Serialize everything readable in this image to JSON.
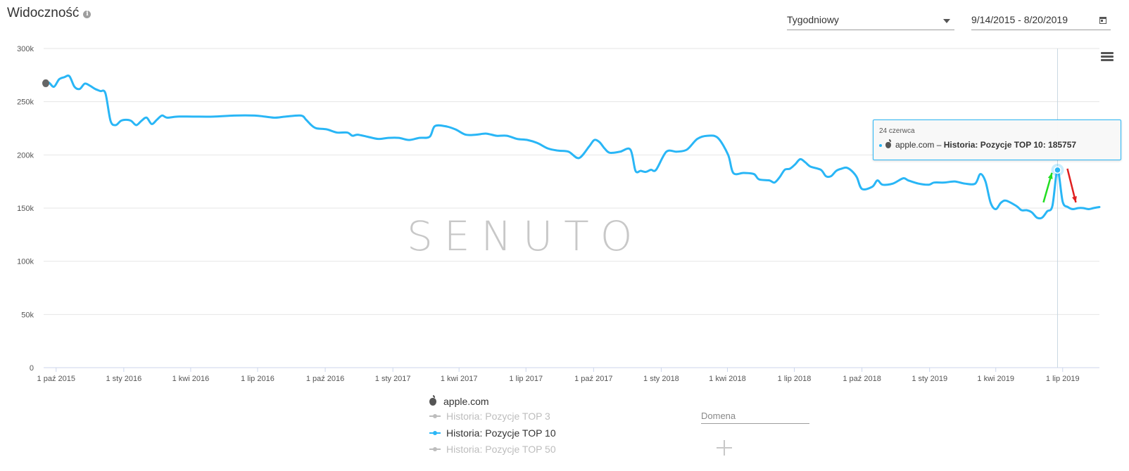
{
  "header": {
    "title": "Widoczność",
    "granularity": "Tygodniowy",
    "date_range": "9/14/2015 - 8/20/2019"
  },
  "colors": {
    "series": "#29b6f6",
    "grid": "#e6e6e6",
    "inactive": "#bdbdbd",
    "arrow_up": "#22dd22",
    "arrow_down": "#e02020"
  },
  "watermark": "SENUTO",
  "tooltip": {
    "date": "24 czerwca",
    "domain": "apple.com",
    "series": "Historia: Pozycje TOP 10",
    "value": "185757"
  },
  "legend": {
    "domain": "apple.com",
    "series": [
      {
        "label": "Historia: Pozycje TOP 3",
        "active": false
      },
      {
        "label": "Historia: Pozycje TOP 10",
        "active": true
      },
      {
        "label": "Historia: Pozycje TOP 50",
        "active": false
      }
    ]
  },
  "domain_input": {
    "placeholder": "Domena",
    "value": ""
  },
  "chart_data": {
    "type": "line",
    "title": "",
    "xlabel": "",
    "ylabel": "",
    "ylim": [
      0,
      300000
    ],
    "xlim": [
      "2015-09-14",
      "2019-08-20"
    ],
    "y_ticks": [
      0,
      50000,
      100000,
      150000,
      200000,
      250000,
      300000
    ],
    "y_tick_labels": [
      "0",
      "50k",
      "100k",
      "150k",
      "200k",
      "250k",
      "300k"
    ],
    "x_ticks": [
      "2015-10-01",
      "2016-01-01",
      "2016-04-01",
      "2016-07-01",
      "2016-10-01",
      "2017-01-01",
      "2017-04-01",
      "2017-07-01",
      "2017-10-01",
      "2018-01-01",
      "2018-04-01",
      "2018-07-01",
      "2018-10-01",
      "2019-01-01",
      "2019-04-01",
      "2019-07-01"
    ],
    "x_tick_labels": [
      "1 paź 2015",
      "1 sty 2016",
      "1 kwi 2016",
      "1 lip 2016",
      "1 paź 2016",
      "1 sty 2017",
      "1 kwi 2017",
      "1 lip 2017",
      "1 paź 2017",
      "1 sty 2018",
      "1 kwi 2018",
      "1 lip 2018",
      "1 paź 2018",
      "1 sty 2019",
      "1 kwi 2019",
      "1 lip 2019"
    ],
    "grid": true,
    "highlight": {
      "date": "2019-06-24",
      "value": 185757
    },
    "series": [
      {
        "name": "Historia: Pozycje TOP 10",
        "points": [
          [
            "2015-09-14",
            268000
          ],
          [
            "2015-09-21",
            268000
          ],
          [
            "2015-09-28",
            264000
          ],
          [
            "2015-10-05",
            271000
          ],
          [
            "2015-10-12",
            273000
          ],
          [
            "2015-10-19",
            274000
          ],
          [
            "2015-10-26",
            264000
          ],
          [
            "2015-11-02",
            262000
          ],
          [
            "2015-11-09",
            267000
          ],
          [
            "2015-11-16",
            265000
          ],
          [
            "2015-11-23",
            262000
          ],
          [
            "2015-11-30",
            260000
          ],
          [
            "2015-12-07",
            258000
          ],
          [
            "2015-12-14",
            232000
          ],
          [
            "2015-12-21",
            228000
          ],
          [
            "2015-12-28",
            232000
          ],
          [
            "2016-01-04",
            233000
          ],
          [
            "2016-01-11",
            232000
          ],
          [
            "2016-01-18",
            228000
          ],
          [
            "2016-01-25",
            232000
          ],
          [
            "2016-02-01",
            235000
          ],
          [
            "2016-02-08",
            229000
          ],
          [
            "2016-02-15",
            233000
          ],
          [
            "2016-02-22",
            237000
          ],
          [
            "2016-02-29",
            235000
          ],
          [
            "2016-03-14",
            236000
          ],
          [
            "2016-04-04",
            236000
          ],
          [
            "2016-05-02",
            236000
          ],
          [
            "2016-05-30",
            237000
          ],
          [
            "2016-06-27",
            237000
          ],
          [
            "2016-07-11",
            236000
          ],
          [
            "2016-07-25",
            235000
          ],
          [
            "2016-08-08",
            236000
          ],
          [
            "2016-08-29",
            237000
          ],
          [
            "2016-09-05",
            233000
          ],
          [
            "2016-09-12",
            228000
          ],
          [
            "2016-09-19",
            225000
          ],
          [
            "2016-10-03",
            224000
          ],
          [
            "2016-10-17",
            221000
          ],
          [
            "2016-10-31",
            221000
          ],
          [
            "2016-11-07",
            218000
          ],
          [
            "2016-11-14",
            219000
          ],
          [
            "2016-11-28",
            217000
          ],
          [
            "2016-12-12",
            215000
          ],
          [
            "2016-12-26",
            216000
          ],
          [
            "2017-01-09",
            216000
          ],
          [
            "2017-01-23",
            214000
          ],
          [
            "2017-02-06",
            216000
          ],
          [
            "2017-02-20",
            217000
          ],
          [
            "2017-02-27",
            227000
          ],
          [
            "2017-03-13",
            227000
          ],
          [
            "2017-03-27",
            224000
          ],
          [
            "2017-04-10",
            219000
          ],
          [
            "2017-04-24",
            219000
          ],
          [
            "2017-05-08",
            220000
          ],
          [
            "2017-05-22",
            218000
          ],
          [
            "2017-06-05",
            218000
          ],
          [
            "2017-06-19",
            215000
          ],
          [
            "2017-07-03",
            214000
          ],
          [
            "2017-07-17",
            211000
          ],
          [
            "2017-07-31",
            206000
          ],
          [
            "2017-08-14",
            204000
          ],
          [
            "2017-08-28",
            203000
          ],
          [
            "2017-09-11",
            197000
          ],
          [
            "2017-09-25",
            208000
          ],
          [
            "2017-10-02",
            214000
          ],
          [
            "2017-10-09",
            212000
          ],
          [
            "2017-10-16",
            206000
          ],
          [
            "2017-10-23",
            202000
          ],
          [
            "2017-11-06",
            203000
          ],
          [
            "2017-11-20",
            205000
          ],
          [
            "2017-11-27",
            185000
          ],
          [
            "2017-12-04",
            185000
          ],
          [
            "2017-12-11",
            184000
          ],
          [
            "2017-12-18",
            186000
          ],
          [
            "2017-12-25",
            186000
          ],
          [
            "2018-01-08",
            203000
          ],
          [
            "2018-01-22",
            203000
          ],
          [
            "2018-02-05",
            205000
          ],
          [
            "2018-02-19",
            215000
          ],
          [
            "2018-03-05",
            218000
          ],
          [
            "2018-03-19",
            216000
          ],
          [
            "2018-04-02",
            200000
          ],
          [
            "2018-04-09",
            183000
          ],
          [
            "2018-04-23",
            183000
          ],
          [
            "2018-05-07",
            182000
          ],
          [
            "2018-05-14",
            177000
          ],
          [
            "2018-05-28",
            176000
          ],
          [
            "2018-06-04",
            174000
          ],
          [
            "2018-06-11",
            179000
          ],
          [
            "2018-06-18",
            186000
          ],
          [
            "2018-06-25",
            187000
          ],
          [
            "2018-07-02",
            191000
          ],
          [
            "2018-07-09",
            196000
          ],
          [
            "2018-07-16",
            193000
          ],
          [
            "2018-07-23",
            189000
          ],
          [
            "2018-08-06",
            186000
          ],
          [
            "2018-08-13",
            180000
          ],
          [
            "2018-08-20",
            180000
          ],
          [
            "2018-08-27",
            185000
          ],
          [
            "2018-09-03",
            187000
          ],
          [
            "2018-09-10",
            188000
          ],
          [
            "2018-09-17",
            185000
          ],
          [
            "2018-09-24",
            179000
          ],
          [
            "2018-10-01",
            168000
          ],
          [
            "2018-10-15",
            170000
          ],
          [
            "2018-10-22",
            176000
          ],
          [
            "2018-10-29",
            172000
          ],
          [
            "2018-11-12",
            173000
          ],
          [
            "2018-11-26",
            178000
          ],
          [
            "2018-12-03",
            176000
          ],
          [
            "2018-12-17",
            173000
          ],
          [
            "2018-12-31",
            172000
          ],
          [
            "2019-01-07",
            174000
          ],
          [
            "2019-01-21",
            174000
          ],
          [
            "2019-02-04",
            175000
          ],
          [
            "2019-02-18",
            173000
          ],
          [
            "2019-03-04",
            173000
          ],
          [
            "2019-03-11",
            182000
          ],
          [
            "2019-03-18",
            175000
          ],
          [
            "2019-03-25",
            155000
          ],
          [
            "2019-04-01",
            149000
          ],
          [
            "2019-04-08",
            155000
          ],
          [
            "2019-04-15",
            157000
          ],
          [
            "2019-04-29",
            152000
          ],
          [
            "2019-05-06",
            148000
          ],
          [
            "2019-05-13",
            148000
          ],
          [
            "2019-05-20",
            146000
          ],
          [
            "2019-05-27",
            141000
          ],
          [
            "2019-06-03",
            141000
          ],
          [
            "2019-06-10",
            147000
          ],
          [
            "2019-06-17",
            152000
          ],
          [
            "2019-06-24",
            185757
          ],
          [
            "2019-07-01",
            156000
          ],
          [
            "2019-07-08",
            151000
          ],
          [
            "2019-07-15",
            149000
          ],
          [
            "2019-07-22",
            150000
          ],
          [
            "2019-07-29",
            150000
          ],
          [
            "2019-08-05",
            149000
          ],
          [
            "2019-08-12",
            150000
          ],
          [
            "2019-08-20",
            151000
          ]
        ]
      }
    ]
  }
}
